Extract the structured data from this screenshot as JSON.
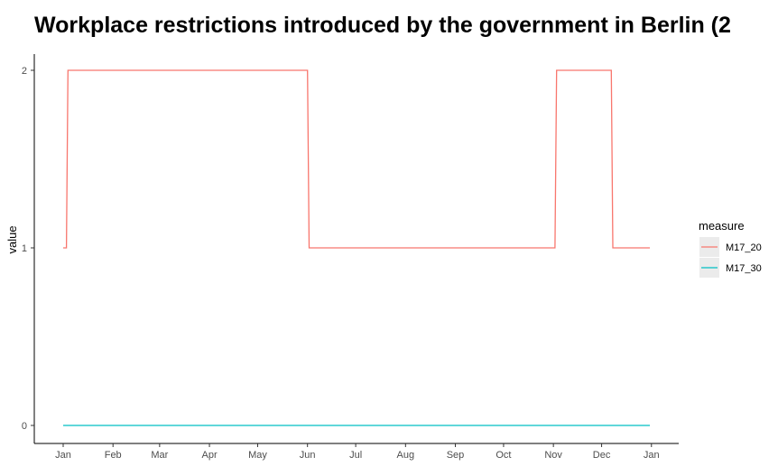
{
  "chart_data": {
    "type": "line",
    "title": "Workplace restrictions introduced by the government in Berlin (2",
    "xlabel": "",
    "ylabel": "value",
    "x_ticks": [
      "Jan",
      "Feb",
      "Mar",
      "Apr",
      "May",
      "Jun",
      "Jul",
      "Aug",
      "Sep",
      "Oct",
      "Nov",
      "Dec",
      "Jan"
    ],
    "y_ticks": [
      "0",
      "1",
      "2"
    ],
    "xlim": [
      "2020-01-01",
      "2020-12-31"
    ],
    "ylim": [
      -0.1,
      2.1
    ],
    "grid": false,
    "legend_title": "measure",
    "legend_position": "right",
    "series": [
      {
        "name": "M17_20",
        "color": "#F8766D",
        "points": [
          [
            "2020-01-01",
            1
          ],
          [
            "2020-01-03",
            1
          ],
          [
            "2020-01-04",
            2
          ],
          [
            "2020-06-01",
            2
          ],
          [
            "2020-06-02",
            1
          ],
          [
            "2020-11-02",
            1
          ],
          [
            "2020-11-03",
            2
          ],
          [
            "2020-12-07",
            2
          ],
          [
            "2020-12-08",
            1
          ],
          [
            "2020-12-31",
            1
          ]
        ]
      },
      {
        "name": "M17_30",
        "color": "#00BFC4",
        "points": [
          [
            "2020-01-01",
            0
          ],
          [
            "2020-12-31",
            0
          ]
        ]
      }
    ]
  }
}
